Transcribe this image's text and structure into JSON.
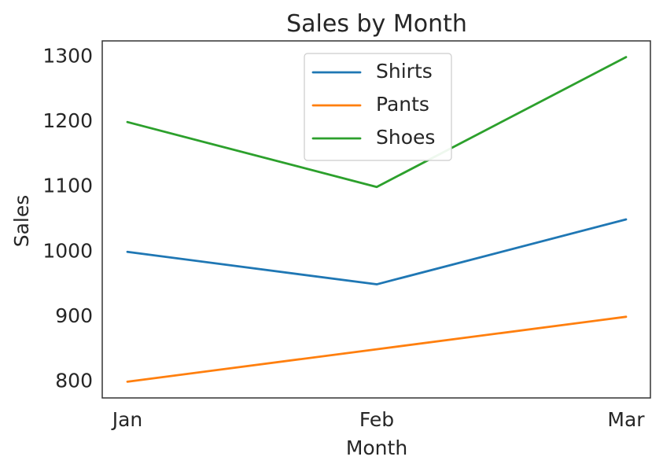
{
  "chart_data": {
    "type": "line",
    "title": "Sales by Month",
    "xlabel": "Month",
    "ylabel": "Sales",
    "categories": [
      "Jan",
      "Feb",
      "Mar"
    ],
    "y_ticks": [
      800,
      900,
      1000,
      1100,
      1200,
      1300
    ],
    "ylim": [
      775,
      1325
    ],
    "grid": false,
    "legend_position": "top-center",
    "series": [
      {
        "name": "Shirts",
        "color": "#1f77b4",
        "values": [
          1000,
          950,
          1050
        ]
      },
      {
        "name": "Pants",
        "color": "#ff7f0e",
        "values": [
          800,
          850,
          900
        ]
      },
      {
        "name": "Shoes",
        "color": "#2ca02c",
        "values": [
          1200,
          1100,
          1300
        ]
      }
    ]
  }
}
